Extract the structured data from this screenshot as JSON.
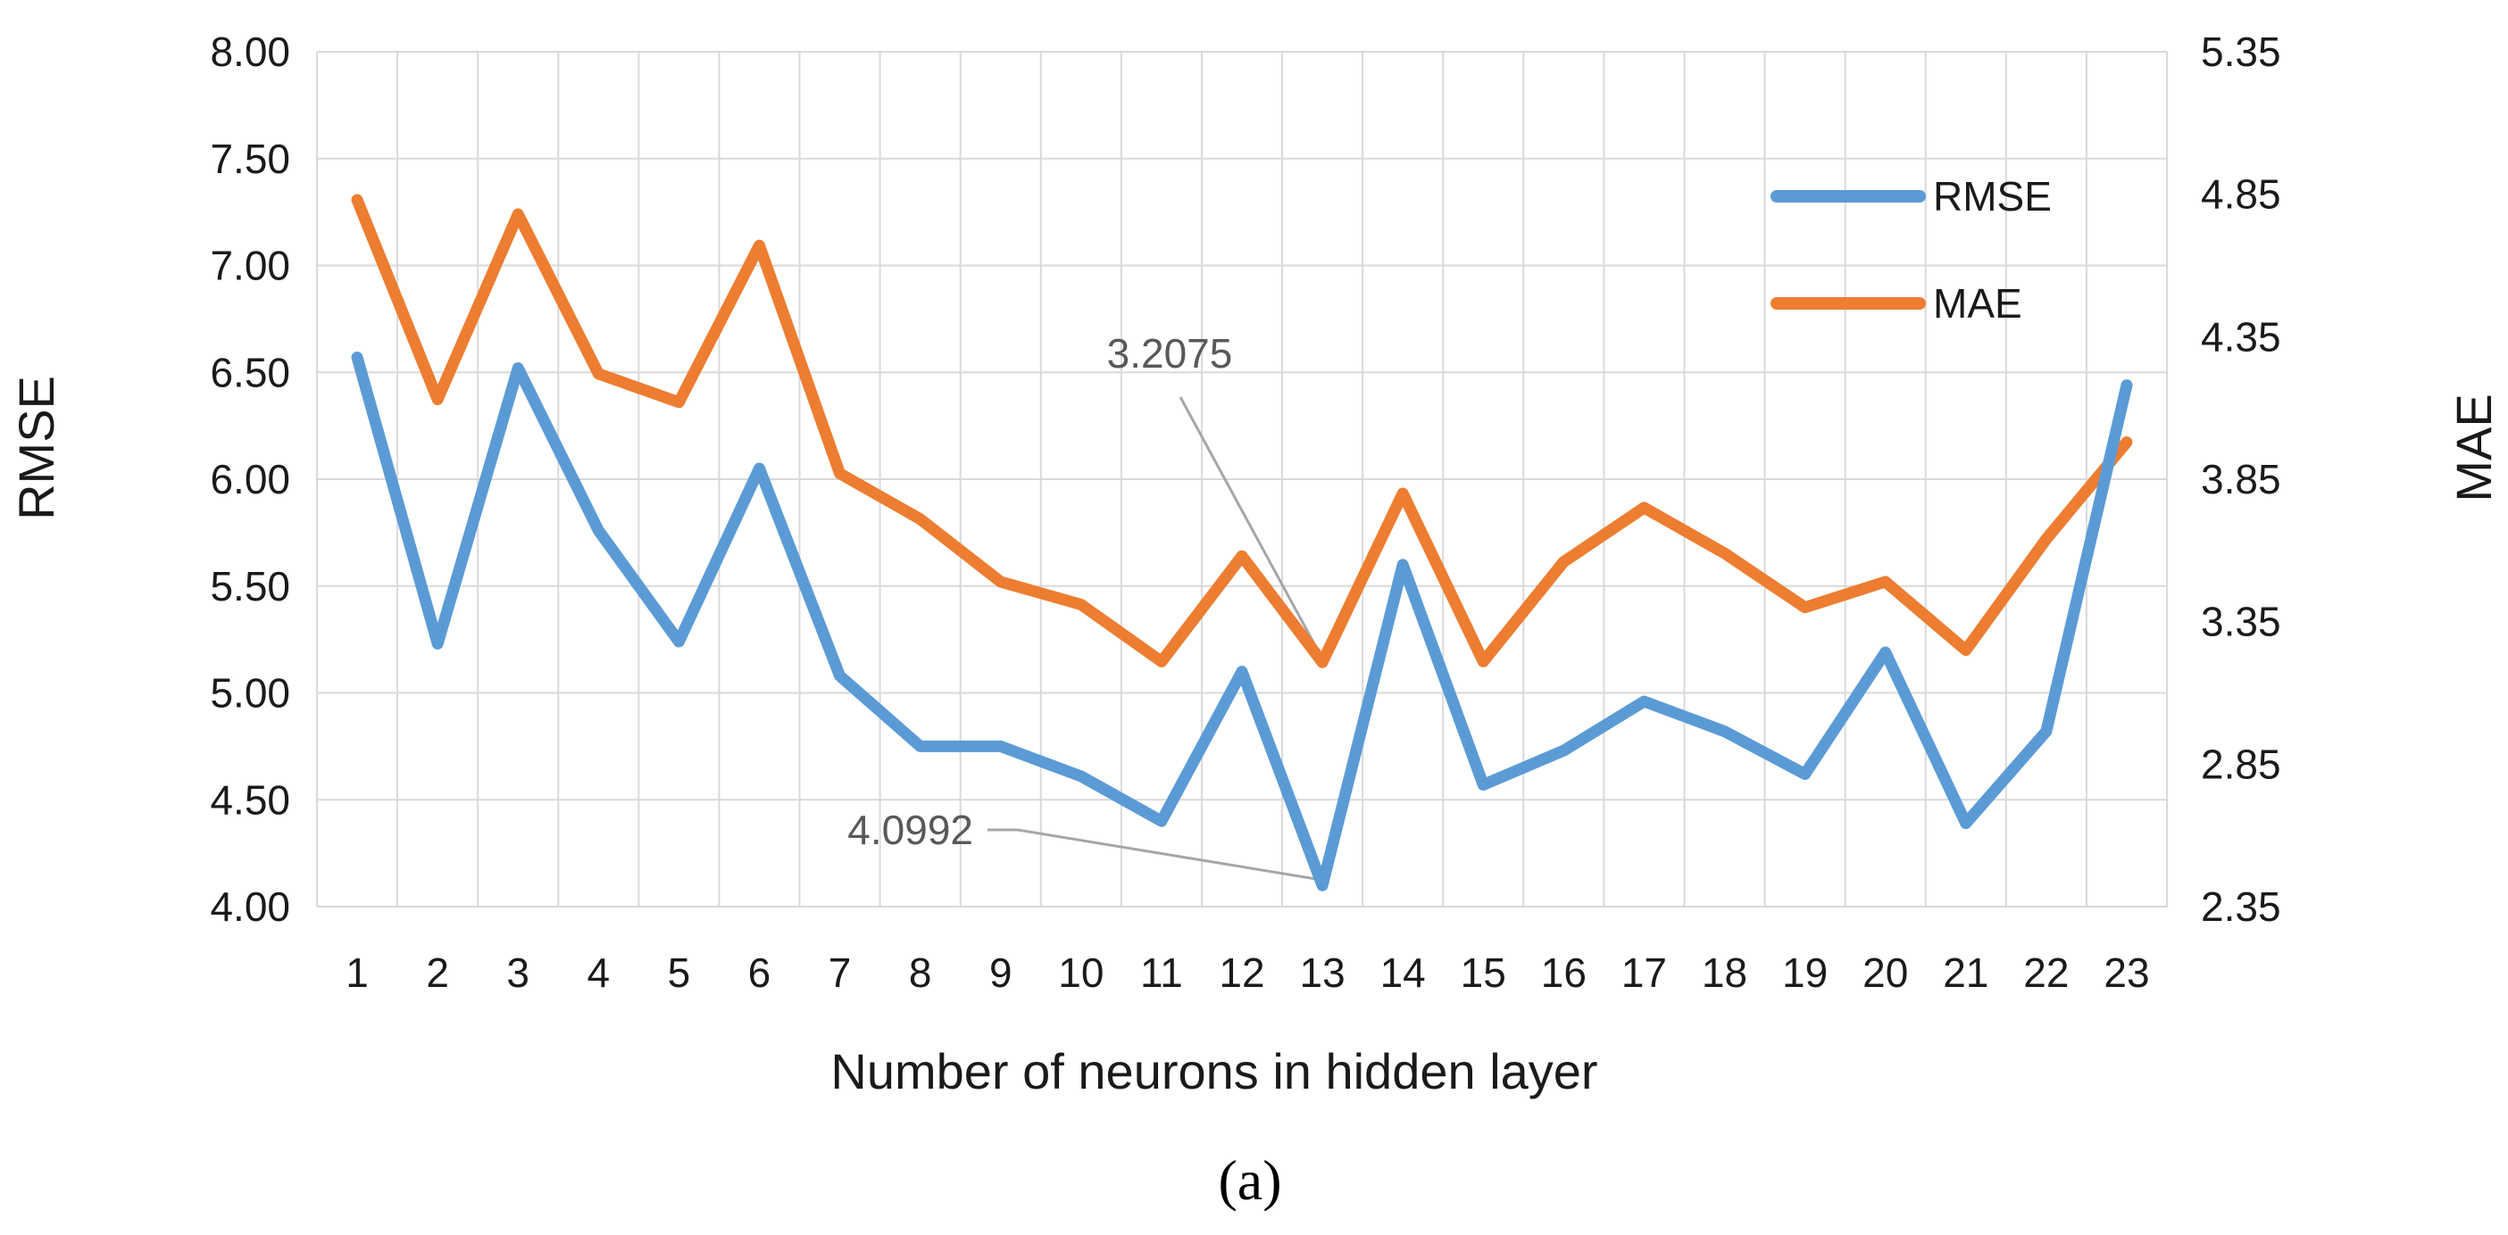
{
  "chart_data": {
    "type": "line",
    "x": [
      1,
      2,
      3,
      4,
      5,
      6,
      7,
      8,
      9,
      10,
      11,
      12,
      13,
      14,
      15,
      16,
      17,
      18,
      19,
      20,
      21,
      22,
      23
    ],
    "xlabel": "Number of neurons in hidden layer",
    "ylabel": "RMSE",
    "ylabel_right": "MAE",
    "ylim": [
      4.0,
      8.0
    ],
    "ylim_right": [
      2.35,
      5.35
    ],
    "yticks": [
      "4.00",
      "4.50",
      "5.00",
      "5.50",
      "6.00",
      "6.50",
      "7.00",
      "7.50",
      "8.00"
    ],
    "yticks_right": [
      "2.35",
      "2.85",
      "3.35",
      "3.85",
      "4.35",
      "4.85",
      "5.35"
    ],
    "grid": true,
    "legend_position": "top-right",
    "caption": "(a)",
    "series": [
      {
        "name": "RMSE",
        "axis": "left",
        "color": "#5b9bd5",
        "values": [
          6.57,
          5.23,
          6.52,
          5.76,
          5.24,
          6.05,
          5.08,
          4.75,
          4.75,
          4.61,
          4.4,
          5.1,
          4.0992,
          5.6,
          4.57,
          4.73,
          4.96,
          4.82,
          4.62,
          5.19,
          4.39,
          4.82,
          6.44
        ]
      },
      {
        "name": "MAE",
        "axis": "right",
        "color": "#ed7d31",
        "values": [
          4.83,
          4.13,
          4.78,
          4.22,
          4.12,
          4.67,
          3.87,
          3.71,
          3.49,
          3.41,
          3.21,
          3.58,
          3.2075,
          3.8,
          3.21,
          3.56,
          3.75,
          3.59,
          3.4,
          3.49,
          3.25,
          3.64,
          3.98
        ]
      }
    ],
    "annotations": [
      {
        "label": "3.2075",
        "series": "MAE",
        "x": 13
      },
      {
        "label": "4.0992",
        "series": "RMSE",
        "x": 13
      }
    ]
  }
}
